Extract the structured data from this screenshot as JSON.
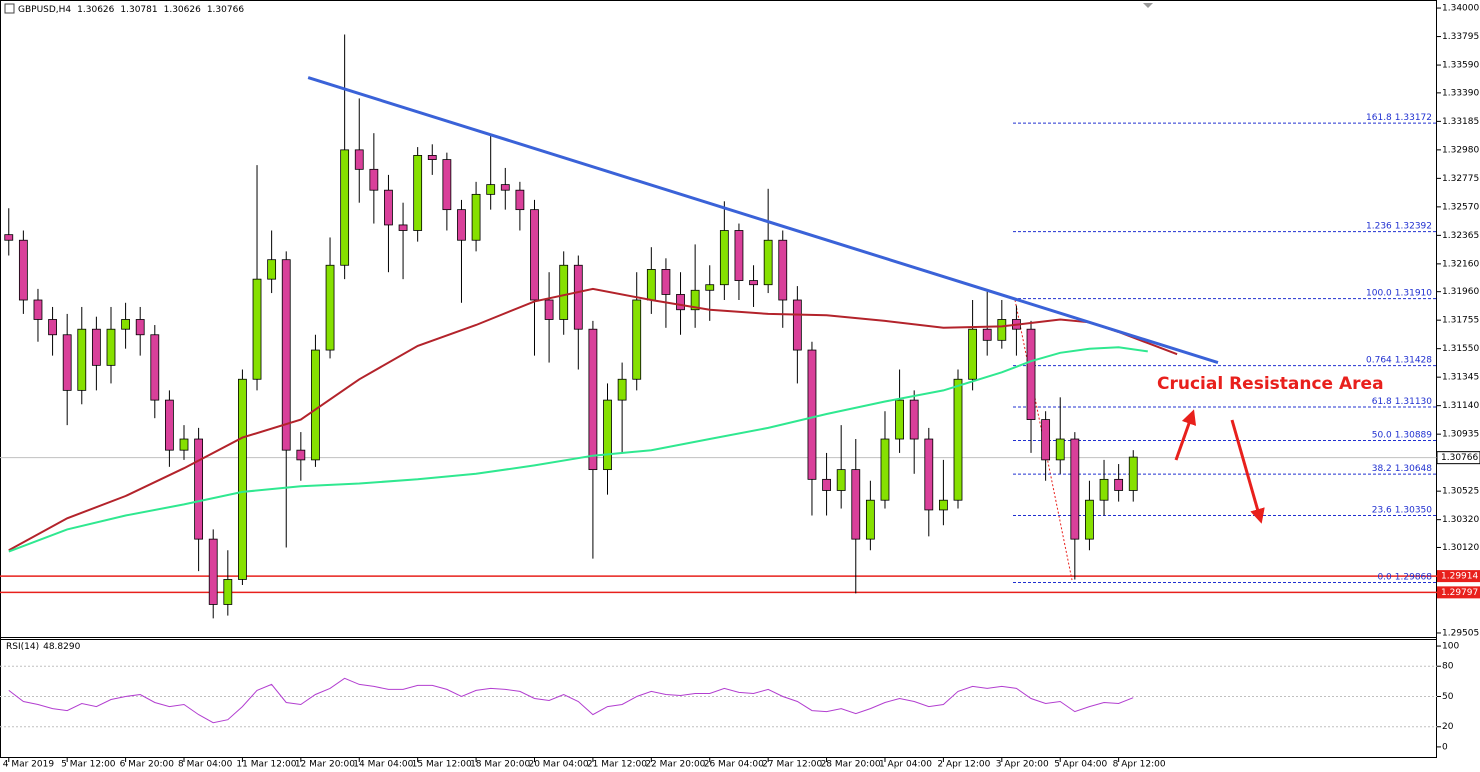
{
  "chart_data": {
    "type": "candlestick",
    "symbol": "GBPUSD,H4",
    "quote": [
      1.30626,
      1.30781,
      1.30626,
      1.30766
    ],
    "xlim": [
      -0.6,
      97.8
    ],
    "ylim": [
      1.29476,
      1.34058
    ],
    "yticks": [
      {
        "value": 1.34,
        "label": "1.34000"
      },
      1.33795,
      {
        "value": 1.3359,
        "label": "1.33590"
      },
      {
        "value": 1.3339,
        "label": "1.33390"
      },
      1.33185,
      {
        "value": 1.3298,
        "label": "1.32980"
      },
      1.32775,
      {
        "value": 1.3257,
        "label": "1.32570"
      },
      1.32365,
      {
        "value": 1.3216,
        "label": "1.32160"
      },
      {
        "value": 1.3196,
        "label": "1.31960"
      },
      1.31755,
      {
        "value": 1.3155,
        "label": "1.31550"
      },
      1.31345,
      {
        "value": 1.3114,
        "label": "1.31140"
      },
      1.30935,
      1.30525,
      {
        "value": 1.3032,
        "label": "1.30320"
      },
      {
        "value": 1.3012,
        "label": "1.30120"
      },
      1.29505
    ],
    "xticks": [
      {
        "value": 0,
        "label": "4 Mar 2019"
      },
      {
        "value": 4,
        "label": "5 Mar 12:00"
      },
      {
        "value": 8,
        "label": "6 Mar 20:00"
      },
      {
        "value": 12,
        "label": "8 Mar 04:00"
      },
      {
        "value": 16,
        "label": "11 Mar 12:00"
      },
      {
        "value": 20,
        "label": "12 Mar 20:00"
      },
      {
        "value": 24,
        "label": "14 Mar 04:00"
      },
      {
        "value": 28,
        "label": "15 Mar 12:00"
      },
      {
        "value": 32,
        "label": "18 Mar 20:00"
      },
      {
        "value": 36,
        "label": "20 Mar 04:00"
      },
      {
        "value": 40,
        "label": "21 Mar 12:00"
      },
      {
        "value": 44,
        "label": "22 Mar 20:00"
      },
      {
        "value": 48,
        "label": "26 Mar 04:00"
      },
      {
        "value": 52,
        "label": "27 Mar 12:00"
      },
      {
        "value": 56,
        "label": "28 Mar 20:00"
      },
      {
        "value": 60,
        "label": "1 Apr 04:00"
      },
      {
        "value": 64,
        "label": "2 Apr 12:00"
      },
      {
        "value": 68,
        "label": "3 Apr 20:00"
      },
      {
        "value": 72,
        "label": "5 Apr 04:00"
      },
      {
        "value": 76,
        "label": "8 Apr 12:00"
      }
    ],
    "open": [
      1.3237,
      1.3233,
      1.319,
      1.3176,
      1.3165,
      1.3125,
      1.3169,
      1.3143,
      1.3169,
      1.3176,
      1.3165,
      1.3118,
      1.3082,
      1.309,
      1.3018,
      1.2971,
      1.2989,
      1.3133,
      1.3205,
      1.3219,
      1.3082,
      1.3075,
      1.3154,
      1.3215,
      1.3298,
      1.3284,
      1.3269,
      1.3244,
      1.324,
      1.3294,
      1.3291,
      1.3255,
      1.3233,
      1.3266,
      1.3273,
      1.3269,
      1.3255,
      1.319,
      1.3176,
      1.3215,
      1.3169,
      1.3068,
      1.3118,
      1.3133,
      1.319,
      1.3212,
      1.3194,
      1.3183,
      1.3197,
      1.3201,
      1.324,
      1.3204,
      1.3201,
      1.3233,
      1.319,
      1.3154,
      1.3061,
      1.3053,
      1.3068,
      1.3018,
      1.3046,
      1.309,
      1.3118,
      1.309,
      1.3039,
      1.3046,
      1.3133,
      1.3169,
      1.3161,
      1.3176,
      1.3169,
      1.3104,
      1.3075,
      1.309,
      1.3018,
      1.3046,
      1.3061,
      1.3053
    ],
    "high": [
      1.3256,
      1.324,
      1.3198,
      1.3185,
      1.318,
      1.3185,
      1.3178,
      1.3185,
      1.3188,
      1.3185,
      1.3172,
      1.3125,
      1.31,
      1.3098,
      1.3025,
      1.301,
      1.314,
      1.3287,
      1.324,
      1.3225,
      1.3095,
      1.3165,
      1.3235,
      1.3381,
      1.3335,
      1.331,
      1.328,
      1.326,
      1.33,
      1.3302,
      1.3296,
      1.3262,
      1.3275,
      1.3309,
      1.3285,
      1.3275,
      1.3262,
      1.321,
      1.3225,
      1.3222,
      1.3175,
      1.313,
      1.3145,
      1.321,
      1.3228,
      1.322,
      1.321,
      1.323,
      1.3215,
      1.3261,
      1.3245,
      1.3215,
      1.327,
      1.324,
      1.32,
      1.316,
      1.308,
      1.31,
      1.309,
      1.306,
      1.311,
      1.314,
      1.3125,
      1.3098,
      1.3075,
      1.314,
      1.319,
      1.3196,
      1.319,
      1.3186,
      1.3175,
      1.311,
      1.312,
      1.3095,
      1.306,
      1.3075,
      1.3072,
      1.3082
    ],
    "low": [
      1.3222,
      1.318,
      1.316,
      1.315,
      1.31,
      1.3115,
      1.3125,
      1.313,
      1.3155,
      1.315,
      1.3105,
      1.307,
      1.3075,
      1.2995,
      1.2961,
      1.2963,
      1.2985,
      1.3125,
      1.3195,
      1.3012,
      1.306,
      1.307,
      1.3148,
      1.3205,
      1.326,
      1.3245,
      1.321,
      1.3205,
      1.3232,
      1.328,
      1.324,
      1.3188,
      1.3225,
      1.3255,
      1.3255,
      1.324,
      1.315,
      1.3145,
      1.3165,
      1.314,
      1.3004,
      1.305,
      1.308,
      1.3125,
      1.318,
      1.317,
      1.3165,
      1.317,
      1.3175,
      1.319,
      1.319,
      1.3185,
      1.3195,
      1.317,
      1.313,
      1.3035,
      1.3035,
      1.304,
      1.2979,
      1.301,
      1.304,
      1.308,
      1.3065,
      1.302,
      1.3028,
      1.304,
      1.3125,
      1.315,
      1.3155,
      1.315,
      1.308,
      1.306,
      1.3065,
      1.2989,
      1.301,
      1.3035,
      1.3045,
      1.3045
    ],
    "close": [
      1.3233,
      1.319,
      1.3176,
      1.3165,
      1.3125,
      1.3169,
      1.3143,
      1.3169,
      1.3176,
      1.3165,
      1.3118,
      1.3082,
      1.309,
      1.3018,
      1.2971,
      1.2989,
      1.3133,
      1.3205,
      1.3219,
      1.3082,
      1.3075,
      1.3154,
      1.3215,
      1.3298,
      1.3284,
      1.3269,
      1.3244,
      1.324,
      1.3294,
      1.3291,
      1.3255,
      1.3233,
      1.3266,
      1.3273,
      1.3269,
      1.3255,
      1.319,
      1.3176,
      1.3215,
      1.3169,
      1.3068,
      1.3118,
      1.3133,
      1.319,
      1.3212,
      1.3194,
      1.3183,
      1.3197,
      1.3201,
      1.324,
      1.3204,
      1.3201,
      1.3233,
      1.319,
      1.3154,
      1.3061,
      1.3053,
      1.3068,
      1.3018,
      1.3046,
      1.309,
      1.3118,
      1.309,
      1.3039,
      1.3046,
      1.3133,
      1.3169,
      1.3161,
      1.3176,
      1.3169,
      1.3104,
      1.3075,
      1.309,
      1.3018,
      1.3046,
      1.3061,
      1.3053,
      1.3077
    ],
    "colors": {
      "up": "#86e000",
      "down": "#d9409a"
    },
    "moving_averages": [
      {
        "color": "#b3232b",
        "x": [
          0,
          4,
          8,
          12,
          16,
          20,
          24,
          28,
          32,
          36,
          40,
          44,
          48,
          52,
          56,
          60,
          64,
          68,
          72,
          74,
          76,
          78,
          80
        ],
        "values": [
          1.301,
          1.3033,
          1.3049,
          1.3069,
          1.3091,
          1.3104,
          1.3133,
          1.3157,
          1.3172,
          1.3189,
          1.3198,
          1.319,
          1.3183,
          1.318,
          1.3179,
          1.3175,
          1.317,
          1.3171,
          1.3176,
          1.3174,
          1.3167,
          1.3159,
          1.3151
        ]
      },
      {
        "color": "#2fe890",
        "x": [
          0,
          4,
          8,
          12,
          16,
          20,
          24,
          28,
          32,
          36,
          40,
          44,
          48,
          52,
          56,
          60,
          64,
          68,
          70,
          72,
          74,
          76,
          78
        ],
        "values": [
          1.3009,
          1.3025,
          1.3035,
          1.3043,
          1.3052,
          1.3056,
          1.3058,
          1.3061,
          1.3065,
          1.3071,
          1.3078,
          1.3082,
          1.309,
          1.3098,
          1.3108,
          1.3117,
          1.3125,
          1.3138,
          1.3146,
          1.3152,
          1.3155,
          1.3156,
          1.3153
        ]
      }
    ],
    "trendline": {
      "color": "#3a62d8",
      "x": [
        20.5,
        82.8
      ],
      "values": [
        1.335,
        1.3145
      ]
    },
    "fibonacci": [
      {
        "ratio": "161.8",
        "price": 1.33172
      },
      {
        "ratio": "1.236",
        "price": 1.32392
      },
      {
        "ratio": "100.0",
        "price": {
          "value": 1.3191,
          "label": "1.31910"
        }
      },
      {
        "ratio": "0.764",
        "price": 1.31428
      },
      {
        "ratio": "61.8",
        "price": {
          "value": 1.3113,
          "label": "1.31130"
        }
      },
      {
        "ratio": "50.0",
        "price": 1.30889
      },
      {
        "ratio": "38.2",
        "price": 1.30648
      },
      {
        "ratio": "23.6",
        "price": {
          "value": 1.3035,
          "label": "1.30350"
        }
      },
      {
        "ratio": "0.0",
        "price": 1.29868
      }
    ],
    "support_lines": [
      1.29914,
      1.29797
    ],
    "current_price": 1.30766,
    "annotation": "Crucial Resistance Area",
    "rsi": {
      "name": "RSI(14)",
      "last": {
        "value": 48.829,
        "label": "48.8290"
      },
      "color": "#b23ed0",
      "ylim": [
        -11,
        106
      ],
      "yticks": [
        100,
        80,
        50,
        20,
        0
      ],
      "values": [
        56,
        45,
        42,
        38,
        36,
        43,
        40,
        47,
        50,
        52,
        44,
        40,
        42,
        32,
        24,
        27,
        40,
        56,
        62,
        44,
        42,
        52,
        58,
        68,
        62,
        60,
        57,
        57,
        61,
        61,
        57,
        50,
        56,
        58,
        57,
        55,
        48,
        46,
        52,
        45,
        32,
        40,
        42,
        50,
        55,
        52,
        51,
        53,
        53,
        58,
        54,
        53,
        57,
        50,
        45,
        36,
        35,
        38,
        33,
        38,
        44,
        48,
        45,
        40,
        42,
        55,
        60,
        58,
        60,
        58,
        48,
        43,
        45,
        35,
        40,
        44,
        43,
        48.829
      ]
    }
  }
}
